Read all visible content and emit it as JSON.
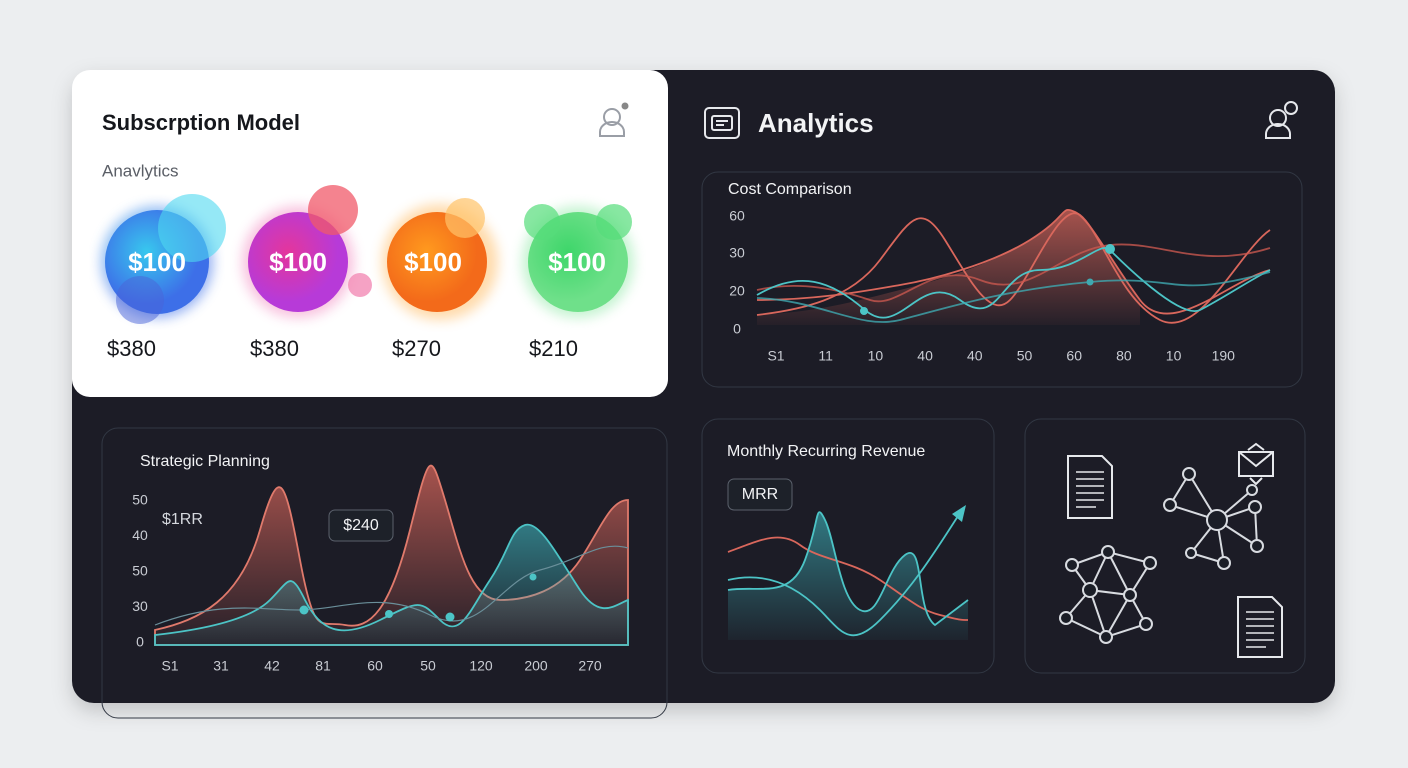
{
  "subscription_card": {
    "title": "Subscrption Model",
    "subtitle": "Anavlytics",
    "plans": [
      {
        "badge": "$100",
        "price": "$380"
      },
      {
        "badge": "$100",
        "price": "$380"
      },
      {
        "badge": "$100",
        "price": "$270"
      },
      {
        "badge": "$100",
        "price": "$210"
      }
    ]
  },
  "header": {
    "title": "Analytics"
  },
  "cost_comparison": {
    "title": "Cost Comparison",
    "y_labels": [
      "60",
      "30",
      "20",
      "0"
    ],
    "x_labels": [
      "S1",
      "11",
      "10",
      "40",
      "40",
      "50",
      "60",
      "80",
      "10",
      "190"
    ]
  },
  "strategic_planning": {
    "title": "Strategic Planning",
    "annotation": "$1RR",
    "tag": "$240",
    "y_labels": [
      "50",
      "40",
      "50",
      "30",
      "0"
    ],
    "x_labels": [
      "S1",
      "31",
      "42",
      "81",
      "60",
      "50",
      "120",
      "200",
      "270"
    ]
  },
  "mrr": {
    "title": "Monthly Recurring Revenue",
    "tag": "MRR"
  }
}
